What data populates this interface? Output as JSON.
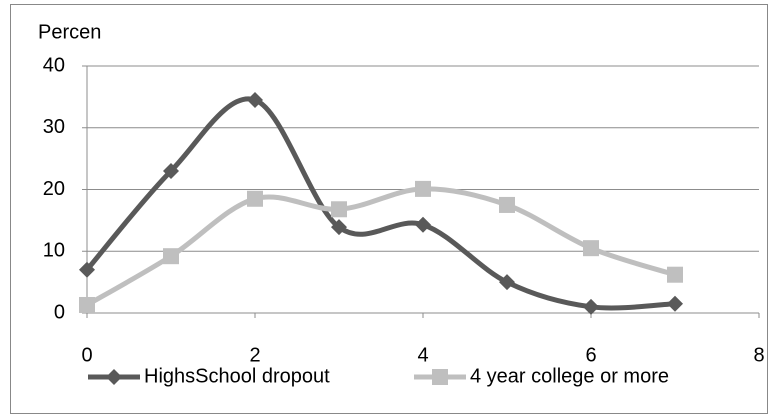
{
  "chart_data": {
    "type": "line",
    "y_label": "Percen",
    "x": [
      0,
      1,
      2,
      3,
      4,
      5,
      6,
      7
    ],
    "series": [
      {
        "name": "HighsSchool dropout",
        "color": "#595959",
        "marker": "diamond",
        "values": [
          7.0,
          23.0,
          34.5,
          13.9,
          14.3,
          5.0,
          1.0,
          1.5
        ]
      },
      {
        "name": "4 year college or more",
        "color": "#bfbfbf",
        "marker": "square",
        "values": [
          1.3,
          9.2,
          18.5,
          16.8,
          20.1,
          17.5,
          10.5,
          6.2
        ]
      }
    ],
    "xlim": [
      0,
      8
    ],
    "xticks": [
      0,
      2,
      4,
      6,
      8
    ],
    "ylim": [
      0,
      40
    ],
    "yticks": [
      0,
      10,
      20,
      30,
      40
    ],
    "grid": true,
    "smooth": true,
    "legend": "bottom"
  }
}
